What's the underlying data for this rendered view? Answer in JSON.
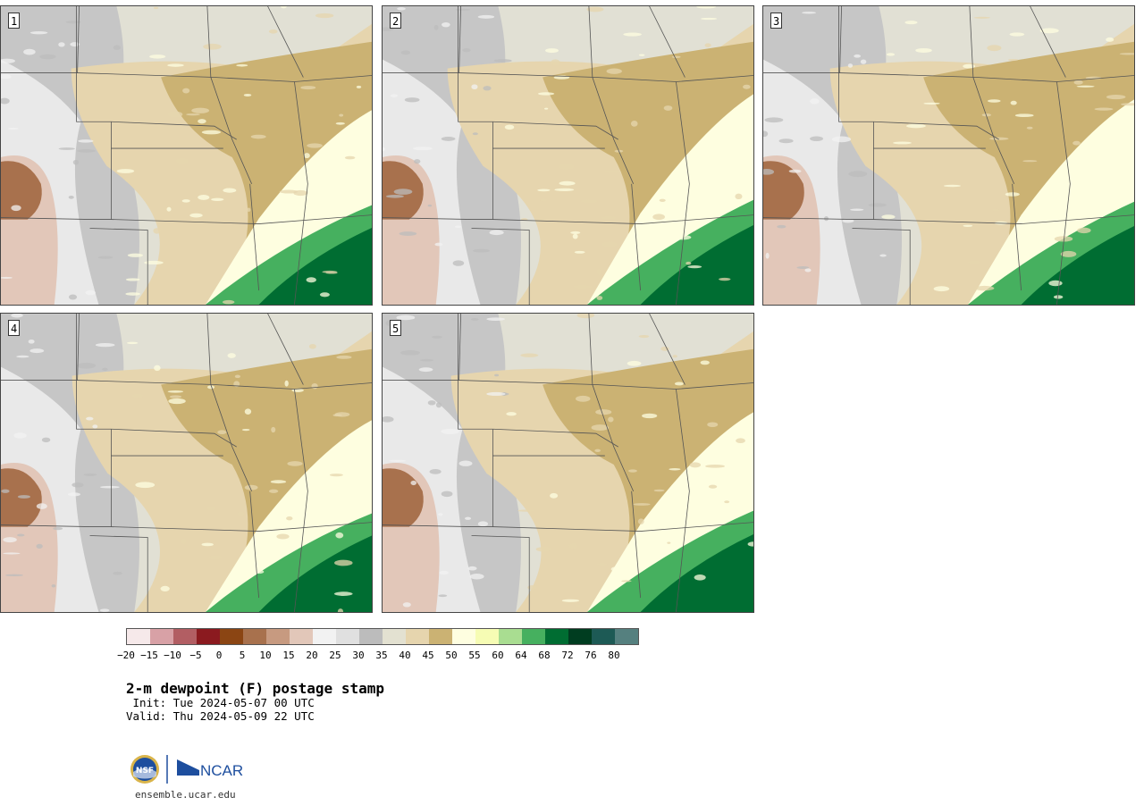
{
  "panels": [
    {
      "label": "1",
      "moisture": 0.55
    },
    {
      "label": "2",
      "moisture": 0.85
    },
    {
      "label": "3",
      "moisture": 0.75
    },
    {
      "label": "4",
      "moisture": 0.5
    },
    {
      "label": "5",
      "moisture": 0.65
    }
  ],
  "colorbar": {
    "colors": [
      "#f6e9ea",
      "#d8a1a6",
      "#b25e63",
      "#8b1a1f",
      "#8b4513",
      "#a8714d",
      "#c79a80",
      "#e2c7b9",
      "#f2f2f2",
      "#e0e0e0",
      "#bcbcbc",
      "#e3e1d1",
      "#e6d5ae",
      "#cbb273",
      "#fefee0",
      "#f6fcb4",
      "#a9dd91",
      "#46b05f",
      "#006d32",
      "#003d20",
      "#1d5a55",
      "#55807f"
    ],
    "tick_labels": [
      "−20",
      "−15",
      "−10",
      "−5",
      "0",
      "5",
      "10",
      "15",
      "20",
      "25",
      "30",
      "35",
      "40",
      "45",
      "50",
      "55",
      "60",
      "64",
      "68",
      "72",
      "76",
      "80"
    ]
  },
  "title": "2-m dewpoint (F) postage stamp",
  "init_line": " Init: Tue 2024-05-07 00 UTC",
  "valid_line": "Valid: Thu 2024-05-09 22 UTC",
  "logo_text": {
    "nsf": "NSF",
    "ncar": "NCAR"
  },
  "website": "ensemble.ucar.edu"
}
